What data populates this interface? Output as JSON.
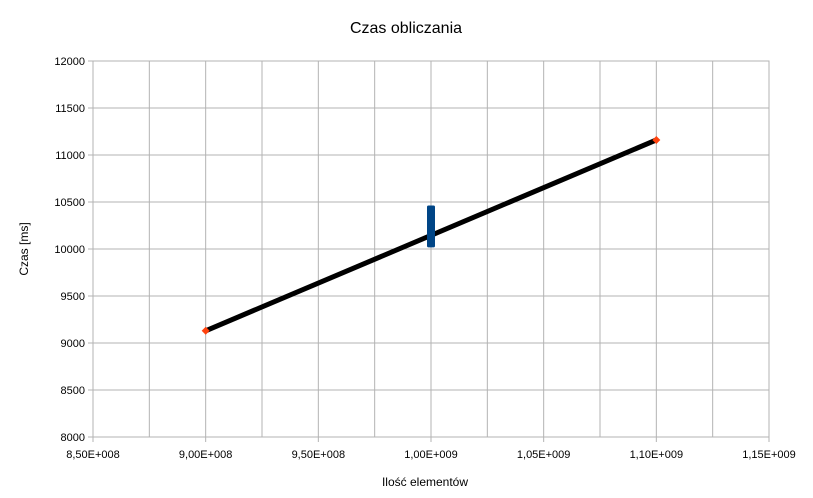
{
  "chart_data": {
    "type": "scatter",
    "title": "Czas obliczania",
    "xlabel": "Ilość elementów",
    "ylabel": "Czas [ms]",
    "xlim": [
      850000000,
      1150000000
    ],
    "ylim": [
      8000,
      12000
    ],
    "x_ticks": [
      850000000,
      900000000,
      950000000,
      1000000000,
      1050000000,
      1100000000,
      1150000000
    ],
    "x_tick_labels": [
      "8,50E+008",
      "9,00E+008",
      "9,50E+008",
      "1,00E+009",
      "1,05E+009",
      "1,10E+009",
      "1,15E+009"
    ],
    "y_ticks": [
      8000,
      8500,
      9000,
      9500,
      10000,
      10500,
      11000,
      11500,
      12000
    ],
    "y_tick_labels": [
      "8000",
      "8500",
      "9000",
      "9500",
      "10000",
      "10500",
      "11000",
      "11500",
      "12000"
    ],
    "grid": true,
    "legend": "none",
    "series": [
      {
        "kind": "points",
        "color": "#004586",
        "marker": "square",
        "x": [
          1000000000,
          1000000000,
          1000000000,
          1000000000,
          1000000000,
          1000000000,
          1000000000,
          1000000000,
          1000000000,
          1000000000
        ],
        "y": [
          10060,
          10100,
          10140,
          10180,
          10220,
          10260,
          10300,
          10340,
          10380,
          10420
        ]
      },
      {
        "kind": "points",
        "color": "#ff420e",
        "marker": "diamond",
        "x": [
          900000000,
          1100000000
        ],
        "y": [
          9130,
          11160
        ]
      },
      {
        "kind": "line",
        "color": "#000000",
        "x": [
          900000000,
          1100000000
        ],
        "y": [
          9130,
          11160
        ]
      }
    ]
  }
}
